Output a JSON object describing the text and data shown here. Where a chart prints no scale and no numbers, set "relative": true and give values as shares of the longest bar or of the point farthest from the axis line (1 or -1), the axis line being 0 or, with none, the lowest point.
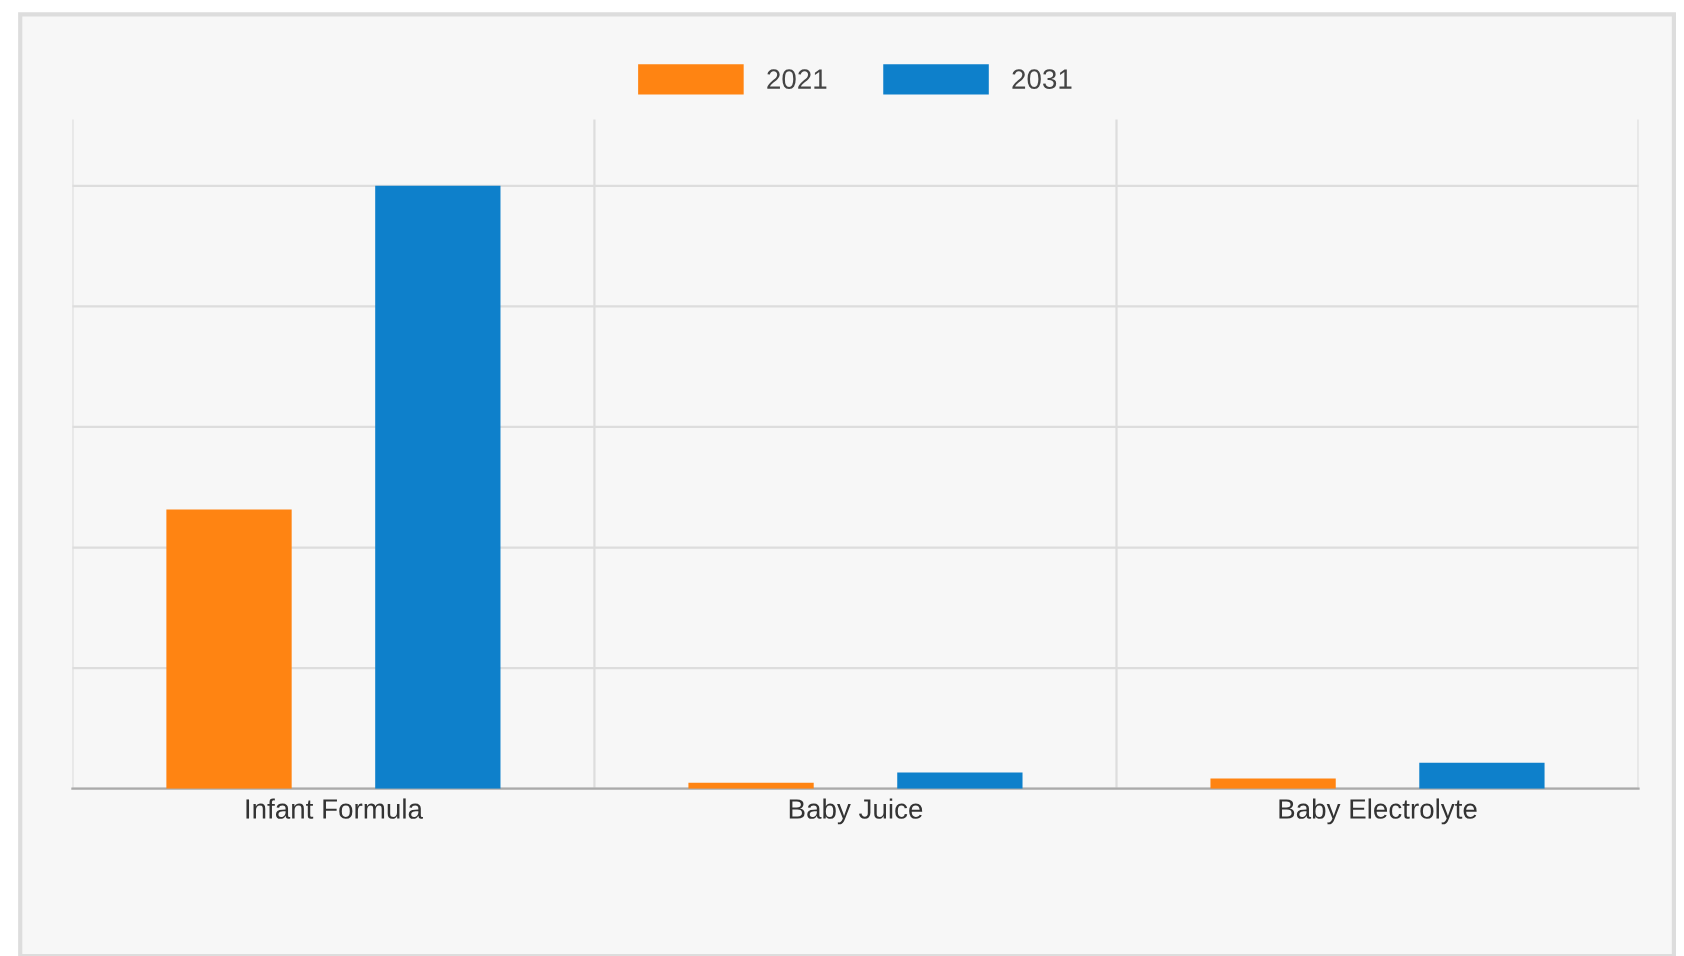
{
  "chart_data": {
    "type": "bar",
    "relative": true,
    "categories": [
      "Infant Formula",
      "Baby Juice",
      "Baby Electrolyte"
    ],
    "series": [
      {
        "name": "2021",
        "color": "#ff8412",
        "values": [
          0.463,
          0.01,
          0.017
        ]
      },
      {
        "name": "2031",
        "color": "#0e80cb",
        "values": [
          1,
          0.027,
          0.043
        ]
      }
    ],
    "grid": true,
    "legend": "top"
  }
}
